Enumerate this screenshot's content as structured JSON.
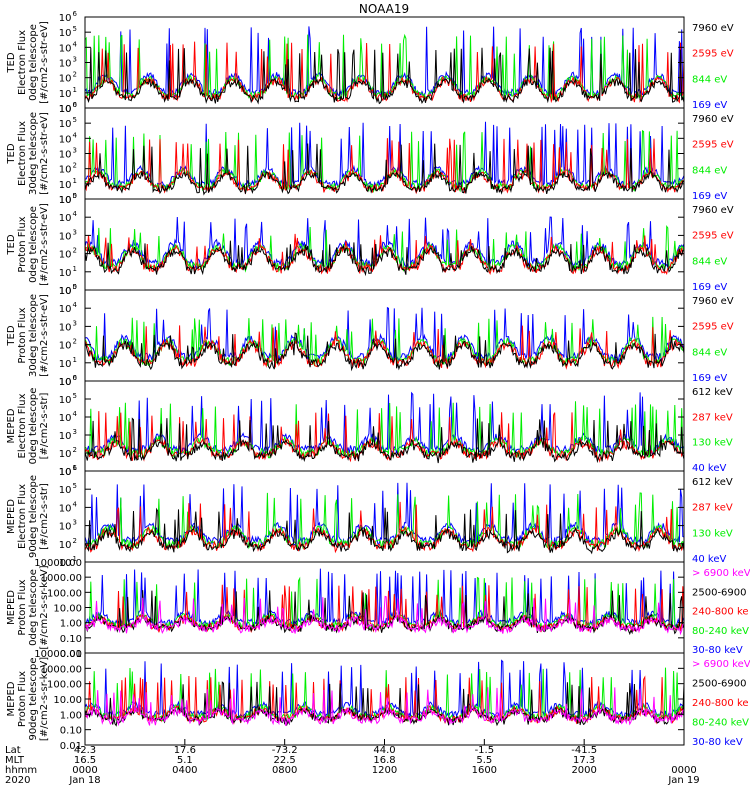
{
  "title": "NOAA19",
  "colors": {
    "black": "#000000",
    "red": "#ff0000",
    "green": "#00ee00",
    "blue": "#0000ff",
    "magenta": "#ff00ff"
  },
  "chart_data": [
    {
      "type": "line",
      "ylabel": [
        "TED",
        "Electron Flux",
        "0deg telescope",
        "[#/cm2-s-str-eV]"
      ],
      "yscale": "log",
      "ylim": [
        1,
        1000000
      ],
      "yticks": [
        {
          "v": 1,
          "m": 0
        },
        {
          "v": 10,
          "m": 1
        },
        {
          "v": 100,
          "m": 2
        },
        {
          "v": 1000,
          "m": 3
        },
        {
          "v": 10000,
          "m": 4
        },
        {
          "v": 100000,
          "m": 5
        },
        {
          "v": 1000000,
          "m": 6
        }
      ],
      "base": 10,
      "peak": 200000,
      "grass": 120,
      "series": [
        {
          "name": "7960 eV",
          "color": "#000000"
        },
        {
          "name": "2595 eV",
          "color": "#ff0000"
        },
        {
          "name": "844 eV",
          "color": "#00ee00"
        },
        {
          "name": "169 eV",
          "color": "#0000ff"
        }
      ]
    },
    {
      "type": "line",
      "ylabel": [
        "TED",
        "Electron Flux",
        "30deg telescope",
        "[#/cm2-s-str-eV]"
      ],
      "yscale": "log",
      "ylim": [
        1,
        1000000
      ],
      "yticks": [
        {
          "v": 1,
          "m": 0
        },
        {
          "v": 10,
          "m": 1
        },
        {
          "v": 100,
          "m": 2
        },
        {
          "v": 1000,
          "m": 3
        },
        {
          "v": 10000,
          "m": 4
        },
        {
          "v": 100000,
          "m": 5
        },
        {
          "v": 1000000,
          "m": 6
        }
      ],
      "base": 10,
      "peak": 100000,
      "grass": 80,
      "series": [
        {
          "name": "7960 eV",
          "color": "#000000"
        },
        {
          "name": "2595 eV",
          "color": "#ff0000"
        },
        {
          "name": "844 eV",
          "color": "#00ee00"
        },
        {
          "name": "169 eV",
          "color": "#0000ff"
        }
      ]
    },
    {
      "type": "line",
      "ylabel": [
        "TED",
        "Proton Flux",
        "0deg telescope",
        "[#/cm2-s-str-eV]"
      ],
      "yscale": "log",
      "ylim": [
        1,
        100000
      ],
      "yticks": [
        {
          "v": 1,
          "m": 0
        },
        {
          "v": 10,
          "m": 1
        },
        {
          "v": 100,
          "m": 2
        },
        {
          "v": 1000,
          "m": 3
        },
        {
          "v": 10000,
          "m": 4
        },
        {
          "v": 100000,
          "m": 5
        }
      ],
      "base": 30,
      "peak": 10000,
      "grass": 300,
      "series": [
        {
          "name": "7960 eV",
          "color": "#000000"
        },
        {
          "name": "2595 eV",
          "color": "#ff0000"
        },
        {
          "name": "844 eV",
          "color": "#00ee00"
        },
        {
          "name": "169 eV",
          "color": "#0000ff"
        }
      ]
    },
    {
      "type": "line",
      "ylabel": [
        "TED",
        "Proton Flux",
        "30deg telescope",
        "[#/cm2-s-str-eV]"
      ],
      "yscale": "log",
      "ylim": [
        1,
        100000
      ],
      "yticks": [
        {
          "v": 1,
          "m": 0
        },
        {
          "v": 10,
          "m": 1
        },
        {
          "v": 100,
          "m": 2
        },
        {
          "v": 1000,
          "m": 3
        },
        {
          "v": 10000,
          "m": 4
        },
        {
          "v": 100000,
          "m": 5
        }
      ],
      "base": 20,
      "peak": 10000,
      "grass": 200,
      "series": [
        {
          "name": "7960 eV",
          "color": "#000000"
        },
        {
          "name": "2595 eV",
          "color": "#ff0000"
        },
        {
          "name": "844 eV",
          "color": "#00ee00"
        },
        {
          "name": "169 eV",
          "color": "#0000ff"
        }
      ]
    },
    {
      "type": "line",
      "ylabel": [
        "MEPED",
        "Electron Flux",
        "0deg telescope",
        "[#/cm2-s-str]"
      ],
      "yscale": "log",
      "ylim": [
        10,
        1000000
      ],
      "yticks": [
        {
          "v": 10,
          "m": 1
        },
        {
          "v": 100,
          "m": 2
        },
        {
          "v": 1000,
          "m": 3
        },
        {
          "v": 10000,
          "m": 4
        },
        {
          "v": 100000,
          "m": 5
        },
        {
          "v": 1000000,
          "m": 6
        }
      ],
      "base": 150,
      "peak": 200000,
      "grass": 600,
      "series": [
        {
          "name": "612 keV",
          "color": "#000000"
        },
        {
          "name": "287 keV",
          "color": "#ff0000"
        },
        {
          "name": "130 keV",
          "color": "#00ee00"
        },
        {
          "name": "40 keV",
          "color": "#0000ff"
        }
      ]
    },
    {
      "type": "line",
      "ylabel": [
        "MEPED",
        "Electron Flux",
        "90deg telescope",
        "[#/cm2-s-str]"
      ],
      "yscale": "log",
      "ylim": [
        10,
        1000000
      ],
      "yticks": [
        {
          "v": 10,
          "m": 1
        },
        {
          "v": 100,
          "m": 2
        },
        {
          "v": 1000,
          "m": 3
        },
        {
          "v": 10000,
          "m": 4
        },
        {
          "v": 100000,
          "m": 5
        },
        {
          "v": 1000000,
          "m": 6
        }
      ],
      "base": 150,
      "peak": 200000,
      "grass": 800,
      "series": [
        {
          "name": "612 keV",
          "color": "#000000"
        },
        {
          "name": "287 keV",
          "color": "#ff0000"
        },
        {
          "name": "130 keV",
          "color": "#00ee00"
        },
        {
          "name": "40 keV",
          "color": "#0000ff"
        }
      ]
    },
    {
      "type": "line",
      "ylabel": [
        "MEPED",
        "Proton Flux",
        "0deg telescope",
        "[#/cm2-s-sr-keV]"
      ],
      "yscale": "log",
      "ylim": [
        0.01,
        10000
      ],
      "yticks": [
        {
          "v": 0.01,
          "t": "0.01"
        },
        {
          "v": 0.1,
          "t": "0.10"
        },
        {
          "v": 1,
          "t": "1.00"
        },
        {
          "v": 10,
          "t": "10.00"
        },
        {
          "v": 100,
          "t": "100.00"
        },
        {
          "v": 1000,
          "t": "1000.00"
        },
        {
          "v": 10000,
          "t": "10000.00"
        }
      ],
      "base": 1,
      "peak": 3000,
      "grass": 3,
      "series": [
        {
          "name": "> 6900 keV",
          "color": "#ff00ff"
        },
        {
          "name": "2500-6900",
          "color": "#000000"
        },
        {
          "name": "240-800 ke",
          "color": "#ff0000"
        },
        {
          "name": "80-240 keV",
          "color": "#00ee00"
        },
        {
          "name": "30-80 keV",
          "color": "#0000ff"
        }
      ]
    },
    {
      "type": "line",
      "ylabel": [
        "MEPED",
        "Proton Flux",
        "90deg telescope",
        "[#/cm2-s-sr-keV]"
      ],
      "yscale": "log",
      "ylim": [
        0.01,
        10000
      ],
      "yticks": [
        {
          "v": 0.01,
          "t": "0.01"
        },
        {
          "v": 0.1,
          "t": "0.10"
        },
        {
          "v": 1,
          "t": "1.00"
        },
        {
          "v": 10,
          "t": "10.00"
        },
        {
          "v": 100,
          "t": "100.00"
        },
        {
          "v": 1000,
          "t": "1000.00"
        },
        {
          "v": 10000,
          "t": "10000.00"
        }
      ],
      "base": 1,
      "peak": 3000,
      "grass": 3,
      "series": [
        {
          "name": "> 6900 keV",
          "color": "#ff00ff"
        },
        {
          "name": "2500-6900",
          "color": "#000000"
        },
        {
          "name": "240-800 ke",
          "color": "#ff0000"
        },
        {
          "name": "80-240 keV",
          "color": "#00ee00"
        },
        {
          "name": "30-80 keV",
          "color": "#0000ff"
        }
      ]
    }
  ],
  "x_axis": {
    "xlim_hours": [
      0,
      24
    ],
    "row_labels": [
      "Lat",
      "MLT",
      "hhmm",
      "2020"
    ],
    "ticks": [
      {
        "hour": 0,
        "lat": "42.3",
        "mlt": "16.5",
        "hhmm": "0000",
        "date": "Jan 18"
      },
      {
        "hour": 4,
        "lat": "17.6",
        "mlt": "5.1",
        "hhmm": "0400",
        "date": ""
      },
      {
        "hour": 8,
        "lat": "-73.2",
        "mlt": "22.5",
        "hhmm": "0800",
        "date": ""
      },
      {
        "hour": 12,
        "lat": "44.0",
        "mlt": "16.8",
        "hhmm": "1200",
        "date": ""
      },
      {
        "hour": 16,
        "lat": "-1.5",
        "mlt": "5.5",
        "hhmm": "1600",
        "date": ""
      },
      {
        "hour": 20,
        "lat": "-41.5",
        "mlt": "17.3",
        "hhmm": "2000",
        "date": ""
      },
      {
        "hour": 24,
        "lat": "",
        "mlt": "",
        "hhmm": "0000",
        "date": "Jan 19"
      }
    ]
  }
}
